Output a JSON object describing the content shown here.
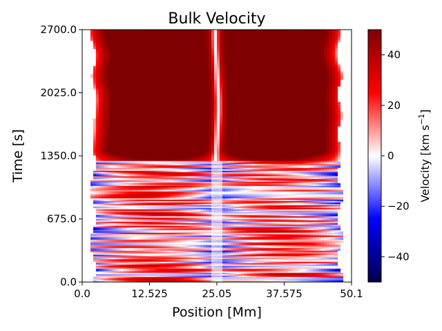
{
  "chart_data": {
    "type": "heatmap",
    "title": "Bulk Velocity",
    "xlabel": "Position [Mm]",
    "ylabel": "Time [s]",
    "xlim": [
      0.0,
      50.1
    ],
    "ylim": [
      0.0,
      2700.0
    ],
    "x_ticks": [
      {
        "value": 0.0,
        "label": "0.0"
      },
      {
        "value": 12.525,
        "label": "12.525"
      },
      {
        "value": 25.05,
        "label": "25.05"
      },
      {
        "value": 37.575,
        "label": "37.575"
      },
      {
        "value": 50.1,
        "label": "50.1"
      }
    ],
    "y_ticks": [
      {
        "value": 0.0,
        "label": "0.0"
      },
      {
        "value": 675.0,
        "label": "675.0"
      },
      {
        "value": 1350.0,
        "label": "1350.0"
      },
      {
        "value": 2025.0,
        "label": "2025.0"
      },
      {
        "value": 2700.0,
        "label": "2700.0"
      }
    ],
    "colorbar": {
      "label": "Velocity [km s",
      "label_exponent": "−1",
      "label_close": "]",
      "colormap": "seismic",
      "vmin": -50,
      "vmax": 50,
      "ticks": [
        {
          "value": 40,
          "label": "40"
        },
        {
          "value": 20,
          "label": "20"
        },
        {
          "value": 0,
          "label": "0"
        },
        {
          "value": -20,
          "label": "−20"
        },
        {
          "value": -40,
          "label": "−40"
        }
      ]
    },
    "field": {
      "domain_x": [
        2.0,
        48.0
      ],
      "apex_x": 25.05,
      "steady_after_time": 1300,
      "steady_peak_velocity": 50,
      "oscillation_phase_amplitude": 15
    }
  }
}
